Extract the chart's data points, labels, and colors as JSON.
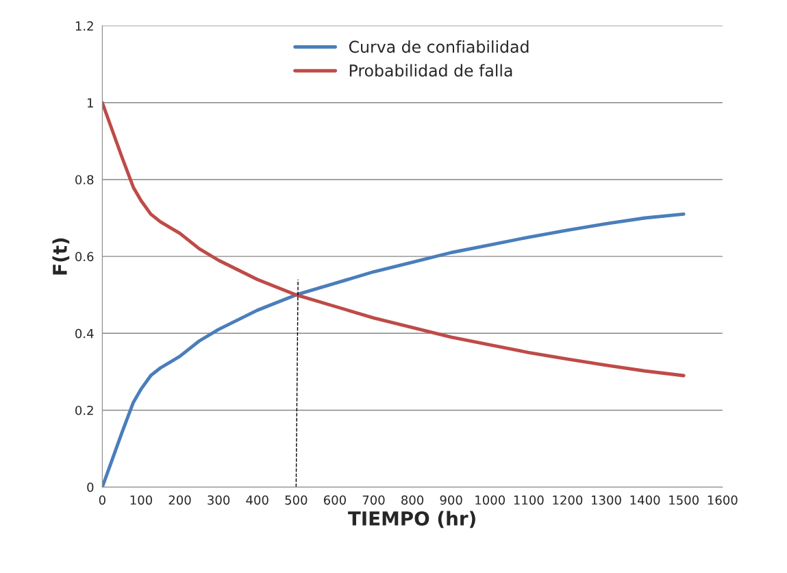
{
  "chart_data": {
    "type": "line",
    "xlabel": "TIEMPO (hr)",
    "ylabel": "F(t)",
    "xlim": [
      0,
      1600
    ],
    "xticks": [
      0,
      100,
      200,
      300,
      400,
      500,
      600,
      700,
      800,
      900,
      1000,
      1100,
      1200,
      1300,
      1400,
      1500,
      1600
    ],
    "ylim": [
      0,
      1.2
    ],
    "yticks": [
      0,
      0.2,
      0.4,
      0.6,
      0.8,
      1,
      1.2
    ],
    "grid": "y",
    "legend": "top",
    "marker": "none",
    "series": [
      {
        "name": "Curva de confiabilidad",
        "color": "#4a7ebb",
        "x": [
          0,
          25,
          50,
          80,
          100,
          125,
          150,
          200,
          250,
          300,
          400,
          500,
          600,
          700,
          800,
          900,
          1000,
          1100,
          1200,
          1300,
          1400,
          1500
        ],
        "values": [
          0,
          0.07,
          0.14,
          0.22,
          0.255,
          0.29,
          0.31,
          0.34,
          0.38,
          0.41,
          0.46,
          0.5,
          0.53,
          0.56,
          0.585,
          0.61,
          0.63,
          0.65,
          0.668,
          0.685,
          0.7,
          0.71
        ]
      },
      {
        "name": "Probabilidad de falla",
        "color": "#be4b48",
        "x": [
          0,
          25,
          50,
          80,
          100,
          125,
          150,
          200,
          250,
          300,
          400,
          500,
          600,
          700,
          800,
          900,
          1000,
          1100,
          1200,
          1300,
          1400,
          1500
        ],
        "values": [
          1,
          0.93,
          0.86,
          0.78,
          0.745,
          0.71,
          0.69,
          0.66,
          0.62,
          0.59,
          0.54,
          0.5,
          0.47,
          0.44,
          0.415,
          0.39,
          0.37,
          0.35,
          0.333,
          0.317,
          0.302,
          0.29
        ]
      },
      {
        "color": "#000000",
        "line_style": "dashed",
        "x": [
          500,
          505
        ],
        "values": [
          0,
          0.54
        ]
      }
    ]
  }
}
